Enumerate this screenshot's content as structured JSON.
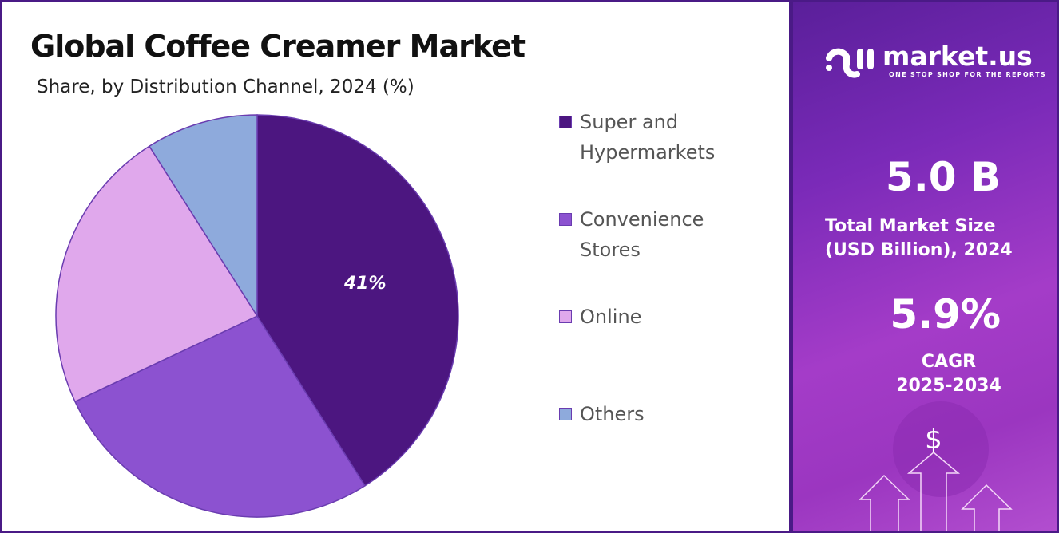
{
  "title": "Global Coffee Creamer Market",
  "subtitle": "Share, by Distribution Channel, 2024 (%)",
  "chart_data": {
    "type": "pie",
    "title": "Global Coffee Creamer Market",
    "subtitle": "Share, by Distribution Channel, 2024 (%)",
    "categories": [
      "Super and Hypermarkets",
      "Convenience Stores",
      "Online",
      "Others"
    ],
    "values": [
      41,
      27,
      23,
      9
    ],
    "colors": [
      "#4c1680",
      "#8c52d0",
      "#e0a8ec",
      "#8eaadc"
    ],
    "data_labels": [
      "41%",
      "",
      "",
      ""
    ],
    "legend": "right"
  },
  "legend": [
    {
      "line1": "Super and",
      "line2": "Hypermarkets"
    },
    {
      "line1": "Convenience",
      "line2": "Stores"
    },
    {
      "line1": "Online",
      "line2": ""
    },
    {
      "line1": "Others",
      "line2": ""
    }
  ],
  "sidebar": {
    "logo_name": "market.us",
    "logo_tagline": "ONE STOP SHOP FOR THE REPORTS",
    "market_size": "5.0 B",
    "market_size_label1": "Total Market Size",
    "market_size_label2": "(USD Billion), 2024",
    "cagr": "5.9%",
    "cagr_label1": "CAGR",
    "cagr_label2": "2025-2034",
    "dollar": "$"
  }
}
